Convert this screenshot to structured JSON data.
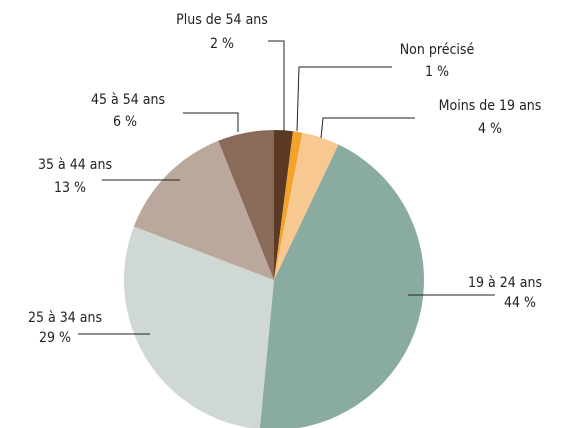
{
  "chart_data": {
    "type": "pie",
    "categories": [
      "Plus de 54 ans",
      "Non précisé",
      "Moins de 19 ans",
      "19 à 24 ans",
      "25 à 34 ans",
      "35 à 44 ans",
      "45 à 54 ans"
    ],
    "values": [
      2,
      1,
      4,
      44,
      29,
      13,
      6
    ],
    "value_labels": [
      "2 %",
      "1 %",
      "4 %",
      "44 %",
      "29 %",
      "13 %",
      "6 %"
    ],
    "colors": [
      "#5a3a25",
      "#f4a22a",
      "#f8c891",
      "#8aab9f",
      "#cfd8d3",
      "#bba89d",
      "#8a6a58"
    ]
  }
}
